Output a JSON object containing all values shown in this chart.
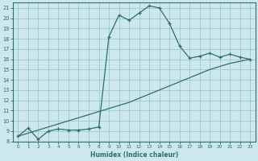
{
  "xlabel": "Humidex (Indice chaleur)",
  "background_color": "#cce8ec",
  "grid_color": "#9dc8cc",
  "line_color": "#2d7068",
  "xlim": [
    -0.5,
    23.5
  ],
  "ylim": [
    8,
    21.5
  ],
  "xticks": [
    0,
    1,
    2,
    3,
    4,
    5,
    6,
    7,
    8,
    9,
    10,
    11,
    12,
    13,
    14,
    15,
    16,
    17,
    18,
    19,
    20,
    21,
    22,
    23
  ],
  "yticks": [
    8,
    9,
    10,
    11,
    12,
    13,
    14,
    15,
    16,
    17,
    18,
    19,
    20,
    21
  ],
  "curve1_x": [
    0,
    1,
    2,
    3,
    4,
    5,
    6,
    7,
    8,
    9,
    10,
    11,
    12,
    13,
    14,
    15,
    16,
    17,
    18,
    19,
    20,
    21,
    22,
    23
  ],
  "curve1_y": [
    8.5,
    9.3,
    8.2,
    9.0,
    9.2,
    9.1,
    9.1,
    9.2,
    9.4,
    18.2,
    20.3,
    19.8,
    20.5,
    21.2,
    21.0,
    19.5,
    17.3,
    16.1,
    16.3,
    16.6,
    16.2,
    16.5,
    16.2,
    16.0
  ],
  "curve2_x": [
    0,
    1,
    2,
    3,
    4,
    5,
    6,
    7,
    8,
    9,
    10,
    11,
    12,
    13,
    14,
    15,
    16,
    17,
    18,
    19,
    20,
    21,
    22,
    23
  ],
  "curve2_y": [
    8.5,
    8.8,
    9.1,
    9.4,
    9.7,
    10.0,
    10.3,
    10.6,
    10.9,
    11.2,
    11.5,
    11.8,
    12.2,
    12.6,
    13.0,
    13.4,
    13.8,
    14.2,
    14.6,
    15.0,
    15.3,
    15.6,
    15.8,
    16.0
  ]
}
